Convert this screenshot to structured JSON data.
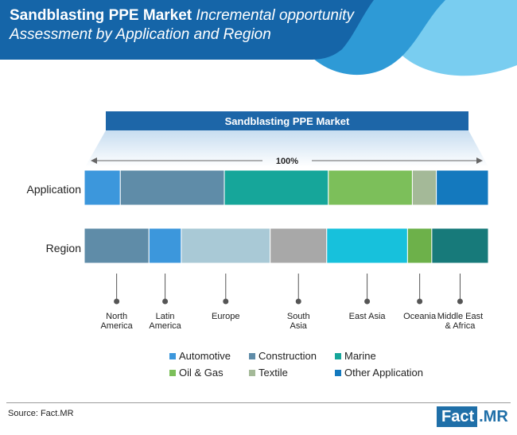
{
  "title": {
    "bold": "Sandblasting PPE Market",
    "italic_line1": "Incremental opportunity",
    "italic_line2": "Assessment by Application and Region"
  },
  "colors": {
    "header_dark": "#1565a8",
    "header_mid": "#2e9ad6",
    "header_light": "#6cc4ee",
    "banner": "#1d66a8"
  },
  "chart_data": {
    "type": "bar",
    "banner": "Sandblasting PPE Market",
    "total_label": "100%",
    "categories": [
      "Application",
      "Region"
    ],
    "series": [
      {
        "category": "Application",
        "segments": [
          {
            "name": "Automotive",
            "value": 9,
            "color": "#3c97dc"
          },
          {
            "name": "Construction",
            "value": 26,
            "color": "#5f8ca8"
          },
          {
            "name": "Marine",
            "value": 26,
            "color": "#16a69a"
          },
          {
            "name": "Oil & Gas",
            "value": 21,
            "color": "#7cbf5a"
          },
          {
            "name": "Textile",
            "value": 6,
            "color": "#a4b998"
          },
          {
            "name": "Other Application",
            "value": 13,
            "color": "#1479be"
          }
        ]
      },
      {
        "category": "Region",
        "segments": [
          {
            "name": "North America",
            "value": 16,
            "color": "#5f8ca8"
          },
          {
            "name": "Latin America",
            "value": 8,
            "color": "#3c97dc"
          },
          {
            "name": "Europe",
            "value": 22,
            "color": "#a9c9d6"
          },
          {
            "name": "South Asia",
            "value": 14,
            "color": "#a8a8a8"
          },
          {
            "name": "East Asia",
            "value": 20,
            "color": "#17c1dc"
          },
          {
            "name": "Oceania",
            "value": 6,
            "color": "#6db14a"
          },
          {
            "name": "Middle East & Africa",
            "value": 14,
            "color": "#177a7a"
          }
        ]
      }
    ],
    "region_labels": [
      [
        "North",
        "America"
      ],
      [
        "Latin",
        "America"
      ],
      [
        "Europe"
      ],
      [
        "South",
        "Asia"
      ],
      [
        "East Asia"
      ],
      [
        "Oceania"
      ],
      [
        "Middle East",
        "& Africa"
      ]
    ]
  },
  "legend": [
    {
      "label": "Automotive",
      "color": "#3c97dc"
    },
    {
      "label": "Construction",
      "color": "#5f8ca8"
    },
    {
      "label": "Marine",
      "color": "#16a69a"
    },
    {
      "label": "Oil & Gas",
      "color": "#7cbf5a"
    },
    {
      "label": "Textile",
      "color": "#a4b998"
    },
    {
      "label": "Other Application",
      "color": "#1479be"
    }
  ],
  "footer": {
    "source": "Source: Fact.MR",
    "logo_part1": "Fact",
    "logo_part2": ".MR"
  }
}
